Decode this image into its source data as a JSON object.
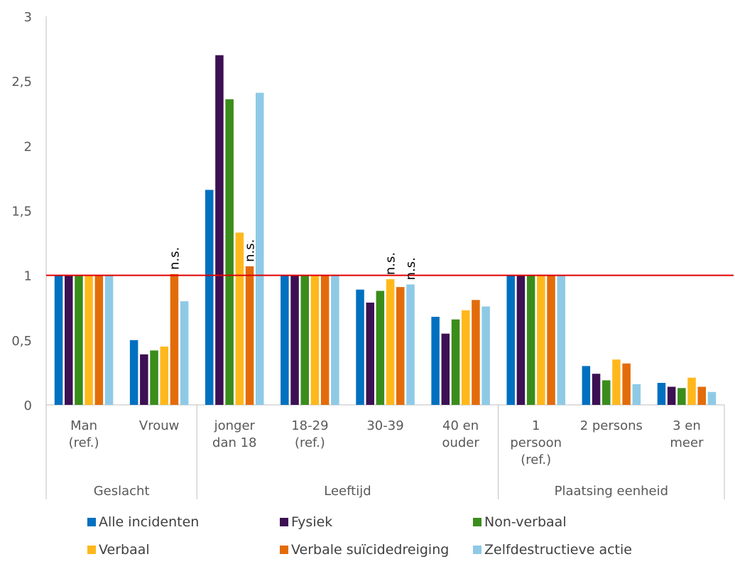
{
  "chart_data": {
    "type": "bar",
    "title": "",
    "xlabel": "",
    "ylabel": "",
    "ylim": [
      0,
      3
    ],
    "yticks": [
      "0",
      "0,5",
      "1",
      "1,5",
      "2",
      "2,5",
      "3"
    ],
    "grid": false,
    "legend_position": "bottom",
    "reference_line": {
      "value": 1,
      "color": "#e00000"
    },
    "groups": [
      {
        "label": "Geslacht",
        "categories": [
          [
            "Man",
            "(ref.)"
          ],
          [
            "Vrouw"
          ]
        ]
      },
      {
        "label": "Leeftijd",
        "categories": [
          [
            "jonger",
            "dan 18"
          ],
          [
            "18-29",
            "(ref.)"
          ],
          [
            "30-39"
          ],
          [
            "40 en",
            "ouder"
          ]
        ]
      },
      {
        "label": "Plaatsing eenheid",
        "categories": [
          [
            "1",
            "persoon",
            "(ref.)"
          ],
          [
            "2 persons"
          ],
          [
            "3 en",
            "meer"
          ]
        ]
      }
    ],
    "series": [
      {
        "name": "Alle incidenten",
        "color": "#0070c0",
        "values": [
          1,
          0.5,
          1.66,
          1,
          0.89,
          0.68,
          1,
          0.3,
          0.17
        ]
      },
      {
        "name": "Fysiek",
        "color": "#3c1053",
        "values": [
          1,
          0.39,
          2.7,
          1,
          0.79,
          0.55,
          1,
          0.24,
          0.14
        ]
      },
      {
        "name": "Non-verbaal",
        "color": "#3a8d1b",
        "values": [
          1,
          0.42,
          2.36,
          1,
          0.88,
          0.66,
          1,
          0.19,
          0.13
        ]
      },
      {
        "name": "Verbaal",
        "color": "#ffb81c",
        "values": [
          1,
          0.45,
          1.33,
          1,
          0.97,
          0.73,
          1,
          0.35,
          0.21
        ]
      },
      {
        "name": "Verbale suïcidedreiging",
        "color": "#e36c0a",
        "values": [
          1,
          1.01,
          1.07,
          1,
          0.91,
          0.81,
          1,
          0.32,
          0.14
        ]
      },
      {
        "name": "Zelfdestructieve actie",
        "color": "#8ecae6",
        "values": [
          1,
          0.8,
          2.41,
          1,
          0.93,
          0.76,
          1,
          0.16,
          0.1
        ]
      }
    ],
    "annotations": [
      {
        "text": "n.s.",
        "category_index": 1,
        "series_index": 4
      },
      {
        "text": "n.s.",
        "category_index": 2,
        "series_index": 4
      },
      {
        "text": "n.s.",
        "category_index": 4,
        "series_index": 3
      },
      {
        "text": "n.s.",
        "category_index": 4,
        "series_index": 5
      }
    ]
  }
}
